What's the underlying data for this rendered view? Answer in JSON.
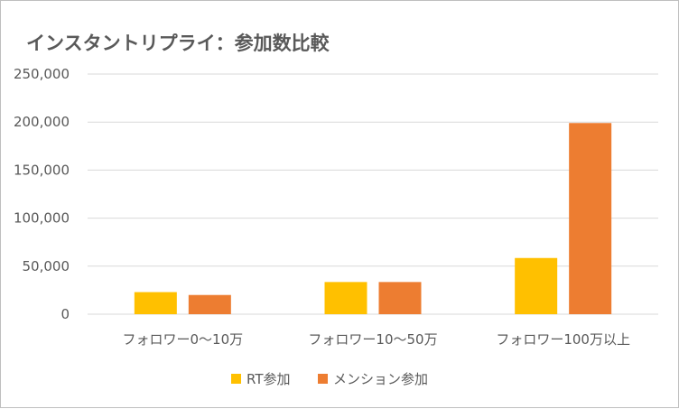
{
  "chart_data": {
    "type": "bar",
    "title": "インスタントリプライ：参加数比較",
    "categories": [
      "フォロワー0〜10万",
      "フォロワー10〜50万",
      "フォロワー100万以上"
    ],
    "series": [
      {
        "name": "RT参加",
        "color": "#ffc000",
        "values": [
          23000,
          33500,
          58500
        ]
      },
      {
        "name": "メンション参加",
        "color": "#ed7d31",
        "values": [
          20000,
          33500,
          199000
        ]
      }
    ],
    "ylim": [
      0,
      250000
    ],
    "yticks": [
      "0",
      "50,000",
      "100,000",
      "150,000",
      "200,000",
      "250,000"
    ],
    "grid": true,
    "legend_position": "bottom"
  },
  "colors": {
    "grid": "#d9d9d9",
    "text": "#595959",
    "frame": "#bfbfbf"
  }
}
